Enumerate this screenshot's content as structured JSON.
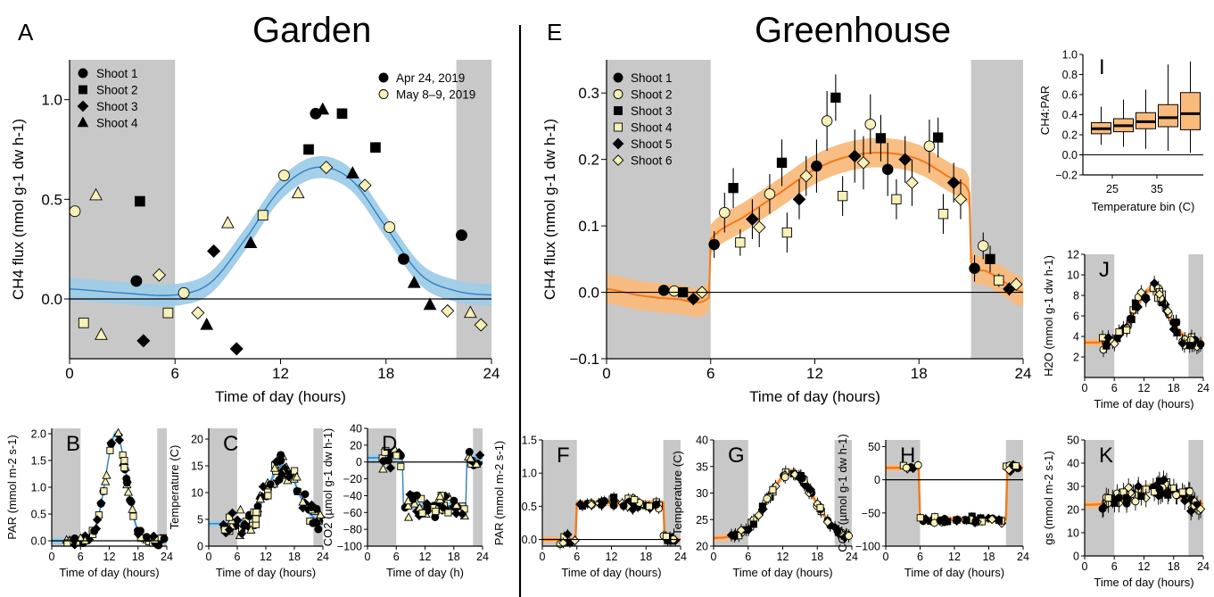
{
  "labels": {
    "A": "A",
    "B": "B",
    "C": "C",
    "D": "D",
    "E": "E",
    "F": "F",
    "G": "G",
    "H": "H",
    "I": "I",
    "J": "J",
    "K": "K",
    "garden": "Garden",
    "greenhouse": "Greenhouse"
  },
  "colors": {
    "garden_band": "#9fcce8",
    "garden_line": "#2f7fc0",
    "greenhouse_band": "#f9bb7c",
    "greenhouse_line": "#f07a1a",
    "night_shade": "#c8c8c8",
    "open_marker_fill": "#f7f0b8"
  },
  "chart_data": [
    {
      "panel": "A",
      "type": "scatter",
      "title": "Garden",
      "xlabel": "Time of day (hours)",
      "ylabel": "CH4 flux (nmol g-1 dw h-1)",
      "xlim": [
        0,
        24
      ],
      "ylim": [
        -0.3,
        1.2
      ],
      "xticks": [
        "0",
        "6",
        "12",
        "18",
        "24"
      ],
      "yticks": [
        "0.0",
        "0.5",
        "1.0"
      ],
      "night": [
        [
          0,
          6
        ],
        [
          22,
          24
        ]
      ],
      "legend_shapes": [
        "Shoot 1",
        "Shoot 2",
        "Shoot 3",
        "Shoot 4"
      ],
      "legend_dates": [
        "Apr 24, 2019",
        "May 8–9, 2019"
      ],
      "fit": {
        "x": [
          0,
          3,
          6,
          8,
          10,
          12,
          14,
          16,
          18,
          20,
          22,
          24
        ],
        "y": [
          0.05,
          0.03,
          0.02,
          0.08,
          0.3,
          0.55,
          0.66,
          0.6,
          0.36,
          0.12,
          0.04,
          0.02
        ]
      },
      "points": [
        {
          "x": 0.3,
          "y": 0.44,
          "shape": "circle",
          "date": "May"
        },
        {
          "x": 1.5,
          "y": 0.52,
          "shape": "triangle",
          "date": "May"
        },
        {
          "x": 4.0,
          "y": 0.49,
          "shape": "square",
          "date": "Apr"
        },
        {
          "x": 3.8,
          "y": 0.09,
          "shape": "circle",
          "date": "Apr"
        },
        {
          "x": 5.1,
          "y": 0.12,
          "shape": "diamond",
          "date": "May"
        },
        {
          "x": 0.8,
          "y": -0.12,
          "shape": "square",
          "date": "May"
        },
        {
          "x": 1.8,
          "y": -0.18,
          "shape": "triangle",
          "date": "May"
        },
        {
          "x": 4.2,
          "y": -0.21,
          "shape": "diamond",
          "date": "Apr"
        },
        {
          "x": 5.6,
          "y": -0.07,
          "shape": "square",
          "date": "May"
        },
        {
          "x": 6.5,
          "y": 0.03,
          "shape": "circle",
          "date": "May"
        },
        {
          "x": 7.3,
          "y": -0.07,
          "shape": "diamond",
          "date": "May"
        },
        {
          "x": 7.8,
          "y": -0.13,
          "shape": "triangle",
          "date": "Apr"
        },
        {
          "x": 8.2,
          "y": 0.24,
          "shape": "diamond",
          "date": "Apr"
        },
        {
          "x": 9.0,
          "y": 0.38,
          "shape": "triangle",
          "date": "May"
        },
        {
          "x": 9.5,
          "y": -0.25,
          "shape": "diamond",
          "date": "Apr"
        },
        {
          "x": 10.3,
          "y": 0.28,
          "shape": "triangle",
          "date": "Apr"
        },
        {
          "x": 11.0,
          "y": 0.42,
          "shape": "square",
          "date": "May"
        },
        {
          "x": 12.2,
          "y": 0.62,
          "shape": "circle",
          "date": "May"
        },
        {
          "x": 13.0,
          "y": 0.53,
          "shape": "triangle",
          "date": "May"
        },
        {
          "x": 13.6,
          "y": 0.75,
          "shape": "square",
          "date": "Apr"
        },
        {
          "x": 14.0,
          "y": 0.93,
          "shape": "circle",
          "date": "Apr"
        },
        {
          "x": 14.4,
          "y": 0.95,
          "shape": "triangle",
          "date": "Apr"
        },
        {
          "x": 14.6,
          "y": 0.66,
          "shape": "diamond",
          "date": "May"
        },
        {
          "x": 15.5,
          "y": 0.93,
          "shape": "square",
          "date": "Apr"
        },
        {
          "x": 16.1,
          "y": 0.63,
          "shape": "triangle",
          "date": "Apr"
        },
        {
          "x": 16.8,
          "y": 0.57,
          "shape": "diamond",
          "date": "May"
        },
        {
          "x": 17.4,
          "y": 0.76,
          "shape": "square",
          "date": "Apr"
        },
        {
          "x": 18.2,
          "y": 0.36,
          "shape": "circle",
          "date": "May"
        },
        {
          "x": 19.0,
          "y": 0.2,
          "shape": "circle",
          "date": "Apr"
        },
        {
          "x": 19.6,
          "y": 0.08,
          "shape": "triangle",
          "date": "Apr"
        },
        {
          "x": 20.5,
          "y": -0.03,
          "shape": "triangle",
          "date": "Apr"
        },
        {
          "x": 21.5,
          "y": -0.06,
          "shape": "diamond",
          "date": "May"
        },
        {
          "x": 22.3,
          "y": 0.32,
          "shape": "circle",
          "date": "Apr"
        },
        {
          "x": 22.8,
          "y": -0.07,
          "shape": "triangle",
          "date": "May"
        },
        {
          "x": 23.4,
          "y": -0.13,
          "shape": "diamond",
          "date": "May"
        }
      ]
    },
    {
      "panel": "E",
      "type": "scatter",
      "title": "Greenhouse",
      "xlabel": "Time of day (hours)",
      "ylabel": "CH4 flux (nmol g-1 dw h-1)",
      "xlim": [
        0,
        24
      ],
      "ylim": [
        -0.1,
        0.35
      ],
      "xticks": [
        "0",
        "6",
        "12",
        "18",
        "24"
      ],
      "yticks": [
        "−0.1",
        "0.0",
        "0.1",
        "0.2",
        "0.3"
      ],
      "night": [
        [
          0,
          6
        ],
        [
          21,
          24
        ]
      ],
      "legend": [
        "Shoot 1",
        "Shoot 2",
        "Shoot 3",
        "Shoot 4",
        "Shoot 5",
        "Shoot 6"
      ],
      "fit": {
        "x": [
          0,
          2,
          4,
          5.9,
          6.0,
          8,
          10,
          12,
          14,
          16,
          18,
          20,
          20.9,
          21.0,
          22,
          24
        ],
        "y": [
          0.005,
          -0.005,
          -0.01,
          -0.008,
          0.08,
          0.115,
          0.15,
          0.185,
          0.205,
          0.21,
          0.2,
          0.17,
          0.15,
          0.045,
          0.03,
          0.0
        ]
      },
      "points": [
        {
          "x": 3.3,
          "y": 0.003,
          "shape": "circle",
          "open": false,
          "err": 0.005
        },
        {
          "x": 3.9,
          "y": 0.002,
          "shape": "circle",
          "open": true,
          "err": 0.005
        },
        {
          "x": 4.4,
          "y": 0.0,
          "shape": "square",
          "open": false,
          "err": 0.005
        },
        {
          "x": 5.0,
          "y": -0.01,
          "shape": "diamond",
          "open": false,
          "err": 0.005
        },
        {
          "x": 5.5,
          "y": 0.0,
          "shape": "diamond",
          "open": true,
          "err": 0.005
        },
        {
          "x": 6.2,
          "y": 0.072,
          "shape": "circle",
          "open": false,
          "err": 0.02
        },
        {
          "x": 6.8,
          "y": 0.12,
          "shape": "circle",
          "open": true,
          "err": 0.03
        },
        {
          "x": 7.3,
          "y": 0.157,
          "shape": "square",
          "open": false,
          "err": 0.03
        },
        {
          "x": 7.7,
          "y": 0.075,
          "shape": "square",
          "open": true,
          "err": 0.02
        },
        {
          "x": 8.4,
          "y": 0.11,
          "shape": "diamond",
          "open": false,
          "err": 0.03
        },
        {
          "x": 8.8,
          "y": 0.098,
          "shape": "diamond",
          "open": true,
          "err": 0.03
        },
        {
          "x": 9.4,
          "y": 0.148,
          "shape": "circle",
          "open": true,
          "err": 0.03
        },
        {
          "x": 10.1,
          "y": 0.195,
          "shape": "square",
          "open": false,
          "err": 0.035
        },
        {
          "x": 10.4,
          "y": 0.09,
          "shape": "square",
          "open": true,
          "err": 0.03
        },
        {
          "x": 11.1,
          "y": 0.14,
          "shape": "diamond",
          "open": false,
          "err": 0.03
        },
        {
          "x": 11.5,
          "y": 0.175,
          "shape": "diamond",
          "open": true,
          "err": 0.03
        },
        {
          "x": 12.1,
          "y": 0.19,
          "shape": "circle",
          "open": false,
          "err": 0.04
        },
        {
          "x": 12.7,
          "y": 0.258,
          "shape": "circle",
          "open": true,
          "err": 0.045
        },
        {
          "x": 13.2,
          "y": 0.293,
          "shape": "square",
          "open": false,
          "err": 0.035
        },
        {
          "x": 13.6,
          "y": 0.145,
          "shape": "square",
          "open": true,
          "err": 0.03
        },
        {
          "x": 14.3,
          "y": 0.205,
          "shape": "diamond",
          "open": false,
          "err": 0.04
        },
        {
          "x": 14.8,
          "y": 0.195,
          "shape": "diamond",
          "open": true,
          "err": 0.04
        },
        {
          "x": 15.2,
          "y": 0.253,
          "shape": "circle",
          "open": true,
          "err": 0.045
        },
        {
          "x": 15.8,
          "y": 0.232,
          "shape": "square",
          "open": false,
          "err": 0.035
        },
        {
          "x": 16.2,
          "y": 0.185,
          "shape": "circle",
          "open": false,
          "err": 0.04
        },
        {
          "x": 16.7,
          "y": 0.14,
          "shape": "square",
          "open": true,
          "err": 0.03
        },
        {
          "x": 17.2,
          "y": 0.2,
          "shape": "diamond",
          "open": false,
          "err": 0.035
        },
        {
          "x": 17.6,
          "y": 0.165,
          "shape": "diamond",
          "open": true,
          "err": 0.035
        },
        {
          "x": 18.6,
          "y": 0.22,
          "shape": "circle",
          "open": true,
          "err": 0.04
        },
        {
          "x": 19.1,
          "y": 0.233,
          "shape": "square",
          "open": false,
          "err": 0.03
        },
        {
          "x": 19.4,
          "y": 0.118,
          "shape": "square",
          "open": true,
          "err": 0.03
        },
        {
          "x": 20.0,
          "y": 0.165,
          "shape": "diamond",
          "open": false,
          "err": 0.03
        },
        {
          "x": 20.4,
          "y": 0.14,
          "shape": "diamond",
          "open": true,
          "err": 0.03
        },
        {
          "x": 21.2,
          "y": 0.036,
          "shape": "circle",
          "open": false,
          "err": 0.02
        },
        {
          "x": 21.7,
          "y": 0.07,
          "shape": "circle",
          "open": true,
          "err": 0.02
        },
        {
          "x": 22.1,
          "y": 0.05,
          "shape": "square",
          "open": false,
          "err": 0.02
        },
        {
          "x": 22.6,
          "y": 0.018,
          "shape": "square",
          "open": true,
          "err": 0.01
        },
        {
          "x": 23.2,
          "y": 0.005,
          "shape": "diamond",
          "open": false,
          "err": 0.01
        },
        {
          "x": 23.6,
          "y": 0.012,
          "shape": "diamond",
          "open": true,
          "err": 0.01
        }
      ]
    },
    {
      "panel": "B",
      "type": "scatter",
      "xlabel": "Time of day (hours)",
      "ylabel": "PAR (mmol m-2 s-1)",
      "xlim": [
        0,
        24
      ],
      "ylim": [
        -0.1,
        2.1
      ],
      "xticks": [
        "0",
        "6",
        "12",
        "18",
        "24"
      ],
      "yticks": [
        "0.0",
        "0.5",
        "1.0",
        "1.5",
        "2.0"
      ],
      "night": [
        [
          0,
          6
        ],
        [
          22,
          24
        ]
      ],
      "curve": {
        "kind": "bell",
        "peak": 2.0,
        "center": 13.4,
        "width": 3.0,
        "base": 0.0
      }
    },
    {
      "panel": "C",
      "type": "scatter",
      "xlabel": "Time of day (hours)",
      "ylabel": "Temperature (C)",
      "xlim": [
        0,
        24
      ],
      "ylim": [
        0,
        22
      ],
      "xticks": [
        "0",
        "6",
        "12",
        "18",
        "24"
      ],
      "yticks": [
        "0",
        "5",
        "10",
        "15",
        "20"
      ],
      "night": [
        [
          0,
          6
        ],
        [
          22,
          24
        ]
      ],
      "curve": {
        "kind": "bell",
        "peak": 10.8,
        "center": 15.5,
        "width": 4.4,
        "base": 4.2
      }
    },
    {
      "panel": "D",
      "type": "scatter",
      "xlabel": "Time of day (h)",
      "ylabel": "CO2 (µmol g-1 dw h-1)",
      "xlim": [
        0,
        24
      ],
      "ylim": [
        -100,
        40
      ],
      "xticks": [
        "0",
        "6",
        "12",
        "18",
        "24"
      ],
      "yticks": [
        "40",
        "20",
        "0",
        "−20",
        "−40",
        "−60",
        "−80",
        "−100"
      ],
      "night": [
        [
          0,
          6
        ],
        [
          22,
          24
        ]
      ],
      "curve": {
        "kind": "step",
        "night": 5,
        "day": -52,
        "on": 7.5,
        "off": 20.5
      }
    },
    {
      "panel": "F",
      "type": "scatter",
      "xlabel": "Time of day (hours)",
      "ylabel": "PAR (mmol m-2 s-1)",
      "xlim": [
        0,
        24
      ],
      "ylim": [
        -0.1,
        1.5
      ],
      "xticks": [
        "0",
        "6",
        "12",
        "18",
        "24"
      ],
      "yticks": [
        "0.0",
        "0.5",
        "1.0",
        "1.5"
      ],
      "night": [
        [
          0,
          6
        ],
        [
          21,
          24
        ]
      ],
      "curve": {
        "kind": "step",
        "night": 0.0,
        "day": 0.55,
        "on": 6,
        "off": 21
      }
    },
    {
      "panel": "G",
      "type": "scatter",
      "xlabel": "Time of day (hours)",
      "ylabel": "Temperature (C)",
      "xlim": [
        0,
        24
      ],
      "ylim": [
        20,
        40
      ],
      "xticks": [
        "0",
        "6",
        "12",
        "18",
        "24"
      ],
      "yticks": [
        "20",
        "25",
        "30",
        "35",
        "40"
      ],
      "night": [
        [
          0,
          6
        ],
        [
          21,
          24
        ]
      ],
      "curve": {
        "kind": "bell",
        "peak": 12.5,
        "center": 13.5,
        "width": 5.5,
        "base": 21.5
      }
    },
    {
      "panel": "H",
      "type": "scatter",
      "xlabel": "Time of day (hours)",
      "ylabel": "CO2 (µmol g-1 dw h-1)",
      "xlim": [
        0,
        24
      ],
      "ylim": [
        -100,
        60
      ],
      "xticks": [
        "0",
        "6",
        "12",
        "18",
        "24"
      ],
      "yticks": [
        "−100",
        "−50",
        "0",
        "50"
      ],
      "night": [
        [
          0,
          6
        ],
        [
          21,
          24
        ]
      ],
      "curve": {
        "kind": "step",
        "night": 18,
        "day": -60,
        "on": 6,
        "off": 21
      }
    },
    {
      "panel": "I",
      "type": "box",
      "xlabel": "Temperature bin (C)",
      "ylabel": "CH4:PAR",
      "ylim": [
        -0.2,
        1.0
      ],
      "xticks": [
        "25",
        "35"
      ],
      "yticks": [
        "−0.2",
        "0.0",
        "0.2",
        "0.4",
        "0.6",
        "0.8",
        "1.0"
      ],
      "boxes": [
        {
          "min": 0.1,
          "q1": 0.21,
          "median": 0.26,
          "q3": 0.32,
          "max": 0.48
        },
        {
          "min": 0.08,
          "q1": 0.23,
          "median": 0.29,
          "q3": 0.36,
          "max": 0.55
        },
        {
          "min": 0.06,
          "q1": 0.26,
          "median": 0.33,
          "q3": 0.42,
          "max": 0.65
        },
        {
          "min": 0.04,
          "q1": 0.28,
          "median": 0.37,
          "q3": 0.5,
          "max": 0.9
        },
        {
          "min": 0.02,
          "q1": 0.25,
          "median": 0.41,
          "q3": 0.62,
          "max": 0.93
        }
      ]
    },
    {
      "panel": "J",
      "type": "scatter",
      "xlabel": "Time of day (hours)",
      "ylabel": "H2O (mmol g-1 dw h-1)",
      "xlim": [
        0,
        24
      ],
      "ylim": [
        0,
        12
      ],
      "xticks": [
        "0",
        "6",
        "12",
        "18",
        "24"
      ],
      "yticks": [
        "2",
        "4",
        "6",
        "8",
        "10",
        "12"
      ],
      "night": [
        [
          0,
          6
        ],
        [
          21,
          24
        ]
      ],
      "curve": {
        "kind": "bell",
        "peak": 5.2,
        "center": 13.5,
        "width": 4.5,
        "base": 3.4
      }
    },
    {
      "panel": "K",
      "type": "scatter",
      "xlabel": "Time of day (hours)",
      "ylabel": "gs (mmol m-2 s-1)",
      "xlim": [
        0,
        24
      ],
      "ylim": [
        0,
        50
      ],
      "xticks": [
        "0",
        "6",
        "12",
        "18",
        "24"
      ],
      "yticks": [
        "0",
        "10",
        "20",
        "30",
        "40",
        "50"
      ],
      "night": [
        [
          0,
          6
        ],
        [
          21,
          24
        ]
      ],
      "curve": {
        "kind": "bell",
        "peak": 8,
        "center": 14,
        "width": 6,
        "base": 22
      }
    }
  ]
}
